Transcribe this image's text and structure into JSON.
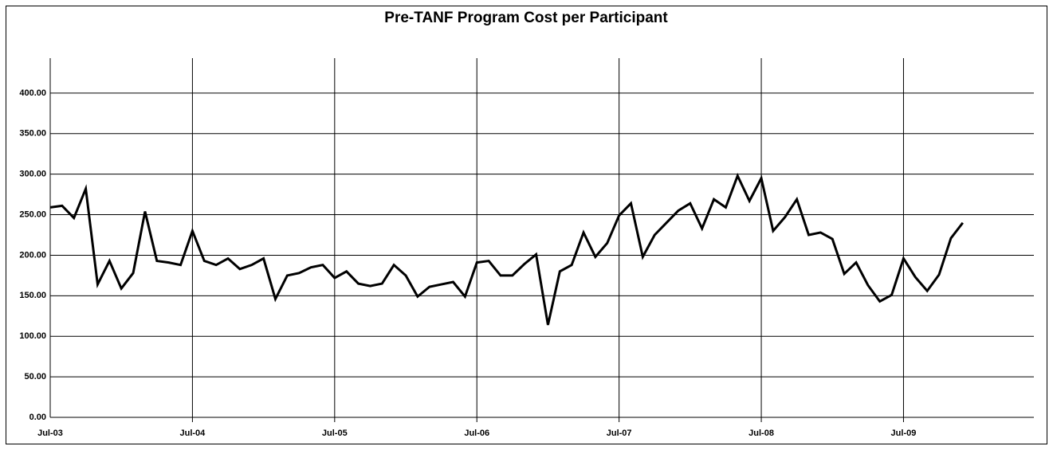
{
  "chart_data": {
    "type": "line",
    "title": "Pre-TANF Program Cost per Participant",
    "categories": [
      "Jul-03",
      null,
      null,
      null,
      null,
      null,
      null,
      null,
      null,
      null,
      null,
      null,
      "Jul-04",
      null,
      null,
      null,
      null,
      null,
      null,
      null,
      null,
      null,
      null,
      null,
      "Jul-05",
      null,
      null,
      null,
      null,
      null,
      null,
      null,
      null,
      null,
      null,
      null,
      "Jul-06",
      null,
      null,
      null,
      null,
      null,
      null,
      null,
      null,
      null,
      null,
      null,
      "Jul-07",
      null,
      null,
      null,
      null,
      null,
      null,
      null,
      null,
      null,
      null,
      null,
      "Jul-08",
      null,
      null,
      null,
      null,
      null,
      null,
      null,
      null,
      null,
      null,
      null,
      "Jul-09",
      null,
      null,
      null,
      null,
      null,
      null,
      null,
      null,
      null,
      null,
      null
    ],
    "series": [
      {
        "color": "#000000",
        "values": [
          259,
          261,
          246,
          282,
          164,
          193,
          159,
          178,
          254,
          193,
          191,
          188,
          230,
          193,
          188,
          196,
          183,
          188,
          196,
          146,
          175,
          178,
          185,
          188,
          172,
          180,
          165,
          162,
          165,
          188,
          175,
          149,
          161,
          164,
          167,
          149,
          191,
          193,
          175,
          175,
          189,
          201,
          114,
          180,
          188,
          228,
          198,
          215,
          249,
          264,
          198,
          225,
          240,
          255,
          264,
          233,
          269,
          259,
          298,
          267,
          295,
          230,
          247,
          269,
          225,
          228,
          220,
          177,
          191,
          163,
          143,
          151,
          196,
          173,
          156,
          176,
          221,
          240,
          null,
          null,
          null,
          null,
          null,
          null
        ]
      }
    ],
    "ylim": [
      0,
      450
    ],
    "yticks": [
      {
        "value": 0,
        "label": "0.00"
      },
      {
        "value": 50,
        "label": "50.00"
      },
      {
        "value": 100,
        "label": "100.00"
      },
      {
        "value": 150,
        "label": "150.00"
      },
      {
        "value": 200,
        "label": "200.00"
      },
      {
        "value": 250,
        "label": "250.00"
      },
      {
        "value": 300,
        "label": "300.00"
      },
      {
        "value": 350,
        "label": "350.00"
      },
      {
        "value": 400,
        "label": "400.00"
      }
    ],
    "grid": true
  }
}
